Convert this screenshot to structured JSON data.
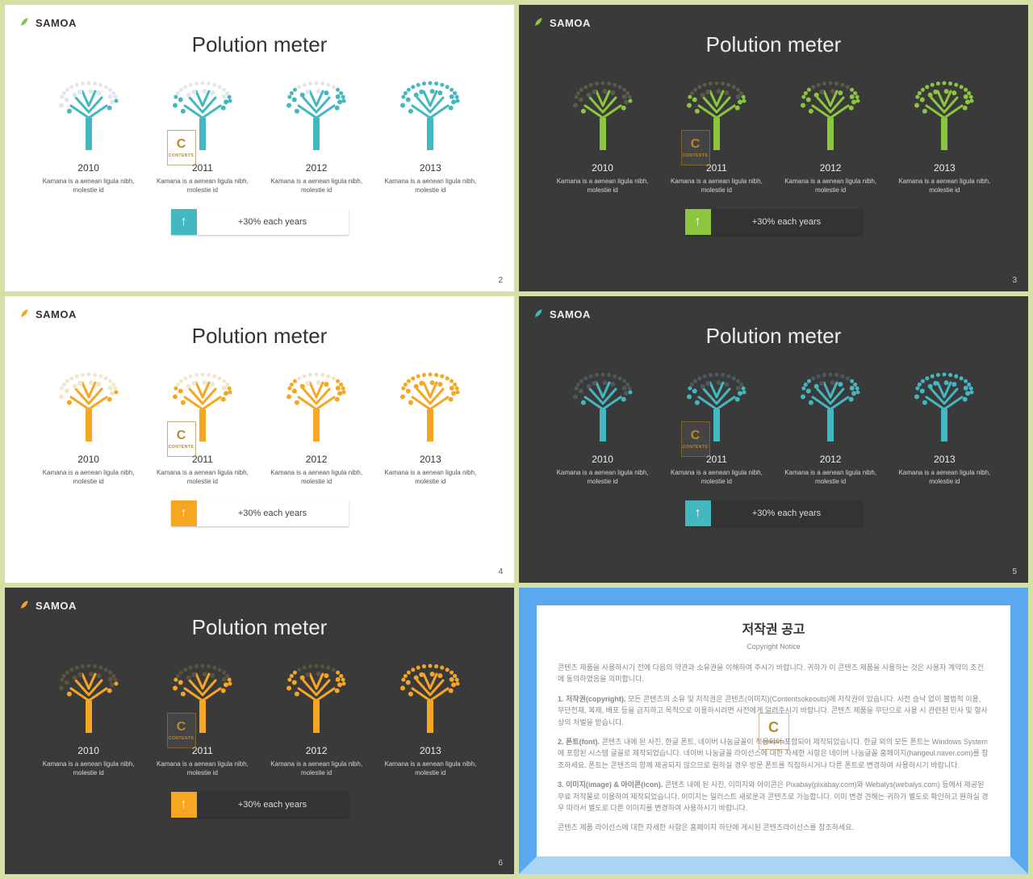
{
  "brand": "SAMOA",
  "title": "Polution meter",
  "years": [
    "2010",
    "2011",
    "2012",
    "2013"
  ],
  "desc": "Kamana is a aenean ligula nibh, molestie id",
  "growth_label": "+30%  each years",
  "tree_fill_levels": [
    0.25,
    0.5,
    0.75,
    1.0
  ],
  "slides": [
    {
      "bg": "light",
      "accent": "#44b8c0",
      "faded": "#dfe8ea",
      "leaf": "#7ec850",
      "page": "2"
    },
    {
      "bg": "dark",
      "accent": "#8cc63f",
      "faded": "#5a5a46",
      "leaf": "#8cc63f",
      "page": "3"
    },
    {
      "bg": "light",
      "accent": "#f5a623",
      "faded": "#f3e6cc",
      "leaf": "#f5a623",
      "page": "4"
    },
    {
      "bg": "dark",
      "accent": "#44b8c0",
      "faded": "#4a5a5c",
      "leaf": "#44b8c0",
      "page": "5"
    },
    {
      "bg": "dark",
      "accent": "#f5a623",
      "faded": "#5c523e",
      "leaf": "#f5a623",
      "page": "6"
    }
  ],
  "copyright": {
    "title_ko": "저작권 공고",
    "title_en": "Copyright Notice",
    "intro": "콘텐츠 제품을 사용하시기 전에 다음의 약관과 소유권을 이해하여 주시기 바랍니다. 귀하가 이 콘텐츠 제품을 사용하는 것은 사용자 계약의 조건에 동의하였음을 의미합니다.",
    "p1_label": "1. 저작권(copyright).",
    "p1": "모든 콘텐츠의 소유 및 저작권은 콘텐츠(이미지)(Contentsokeouts)에 저작권이 있습니다. 사전 승낙 없이 불법적 이용, 무단전재, 복제, 배포 등을 금지하고 목적으로 이용하시려면 사전에게 알려주시기 바랍니다. 콘텐츠 제품을 무단으로 사용 시 관련된 민사 및 형사상의 처벌을 받습니다.",
    "p2_label": "2. 폰트(font).",
    "p2": "콘텐츠 내에 된 사진, 한글 폰트, 네이버 나눔글꼴이 적용되어 포함되어 제작되었습니다. 한글 외의 모든 폰트는 Windows System에 포함된 시스템 글꼴로 제작되었습니다. 네이버 나눔글꼴 라이선스에 대한 자세한 사항은 네이버 나눔글꼴 홈페이지(hangeul.naver.com)를 참조하세요. 폰트는 콘텐츠의 함께 제공되지 않으므로 원하실 경우 방문 폰트를 직접하시거나 다른 폰트로 변경하여 사용하시기 바랍니다.",
    "p3_label": "3. 이미지(image) & 아이콘(icon).",
    "p3": "콘텐츠 내에 된 사진, 이미지와 아이콘은 Pixabay(pixabay.com)와 Webalys(webalys.com) 등에서 제공된 무료 저작물로 이용하여 제작되었습니다. 이미지는 일러스트 새로운과 콘텐츠로 가능합니다. 이미 변경 견해는 귀하가 별도로 확인하고 원하실 경우 따라서 별도로 다른 이미지를 변경하여 사용하시기 바랍니다.",
    "footer": "콘텐츠 제품 라이선스에 대한 자세한 사항은 홈페이지 하단에 게시된 콘텐츠라이선스를 참조하세요."
  },
  "watermark": {
    "letter": "C",
    "sub": "CONTENTS"
  }
}
